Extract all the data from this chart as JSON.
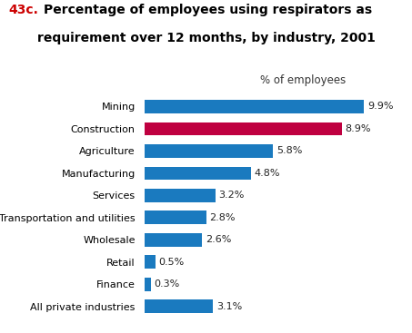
{
  "title_prefix": "43c.",
  "title_prefix_color": "#cc0000",
  "title_line1_rest": " Percentage of employees using respirators as",
  "title_line2": "requirement over 12 months, by industry, 2001",
  "title_color": "#000000",
  "xlabel": "% of employees",
  "categories": [
    "All private industries",
    "Finance",
    "Retail",
    "Wholesale",
    "Transportation and utilities",
    "Services",
    "Manufacturing",
    "Agriculture",
    "Construction",
    "Mining"
  ],
  "values": [
    3.1,
    0.3,
    0.5,
    2.6,
    2.8,
    3.2,
    4.8,
    5.8,
    8.9,
    9.9
  ],
  "bar_colors": [
    "#1a7abf",
    "#1a7abf",
    "#1a7abf",
    "#1a7abf",
    "#1a7abf",
    "#1a7abf",
    "#1a7abf",
    "#1a7abf",
    "#bf0040",
    "#1a7abf"
  ],
  "xlim": [
    0,
    11.5
  ],
  "bar_height": 0.6,
  "label_fontsize": 8,
  "value_fontsize": 8,
  "xlabel_fontsize": 8.5,
  "title_fontsize": 10
}
